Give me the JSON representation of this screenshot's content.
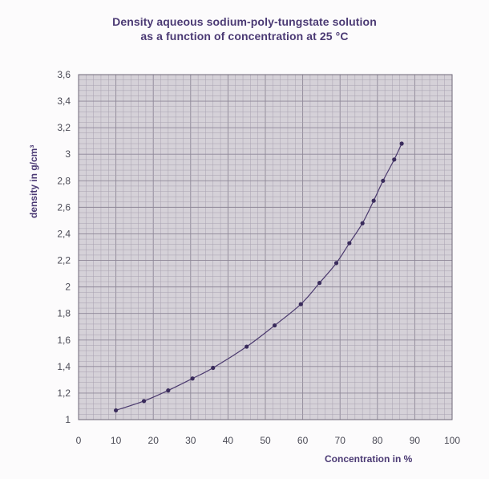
{
  "chart_data": {
    "type": "line",
    "title": "Density aqueous sodium-poly-tungstate solution",
    "subtitle": "as a function of concentration at 25 °C",
    "xlabel": "Concentration in %",
    "ylabel": "density in g/cm³",
    "xlim": [
      0,
      100
    ],
    "ylim": [
      1,
      3.6
    ],
    "x_ticks": [
      "0",
      "10",
      "20",
      "30",
      "40",
      "50",
      "60",
      "70",
      "80",
      "90",
      "100"
    ],
    "y_ticks": [
      "1",
      "1,2",
      "1,4",
      "1,6",
      "1,8",
      "2",
      "2,2",
      "2,4",
      "2,6",
      "2,8",
      "3",
      "3,2",
      "3,4",
      "3,6"
    ],
    "grid": true,
    "series": [
      {
        "x": [
          10,
          17.5,
          24,
          30.5,
          36,
          45,
          52.5,
          59.5,
          64.5,
          69,
          72.5,
          76,
          79,
          81.5,
          84.5,
          86.5
        ],
        "y": [
          1.07,
          1.14,
          1.22,
          1.31,
          1.39,
          1.55,
          1.71,
          1.87,
          2.03,
          2.18,
          2.33,
          2.48,
          2.65,
          2.8,
          2.96,
          3.08
        ]
      }
    ],
    "colors": {
      "line": "#4b3a6e",
      "marker": "#3a2c5c",
      "grid": "#9a93a3",
      "plot_bg": "#d5d1d8",
      "text": "#4b3a74"
    }
  }
}
